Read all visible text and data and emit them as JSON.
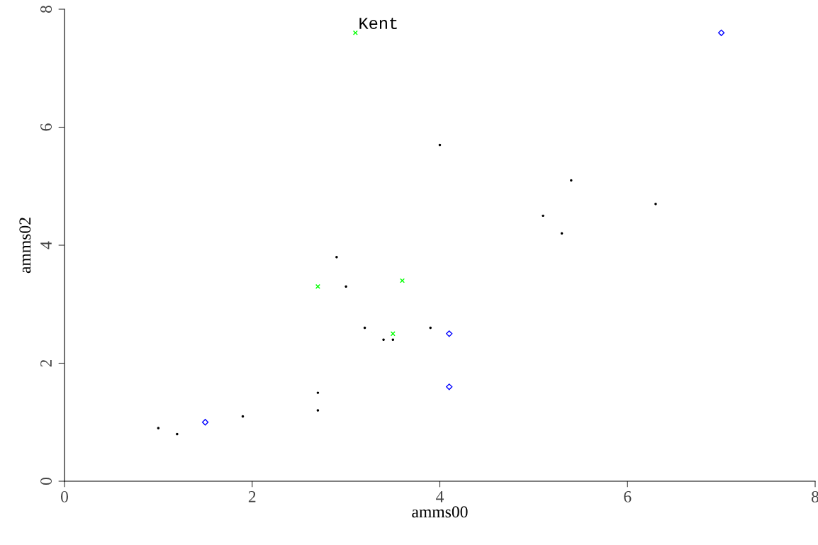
{
  "chart_data": {
    "type": "scatter",
    "xlabel": "amms00",
    "ylabel": "amms02",
    "xlim": [
      0,
      8
    ],
    "ylim": [
      0,
      8
    ],
    "xticks": [
      0,
      2,
      4,
      6,
      8
    ],
    "yticks": [
      0,
      2,
      4,
      6,
      8
    ],
    "grid": false,
    "legend": false,
    "series": [
      {
        "color": "#000000",
        "marker": "circle",
        "x": [
          1.0,
          1.2,
          1.9,
          2.7,
          2.7,
          2.9,
          3.0,
          3.2,
          3.4,
          3.5,
          3.9,
          4.0,
          5.1,
          5.3,
          5.4,
          6.3
        ],
        "values": [
          0.9,
          0.8,
          1.1,
          1.5,
          1.2,
          3.8,
          3.3,
          2.6,
          2.4,
          2.4,
          2.6,
          5.7,
          4.5,
          4.2,
          5.1,
          4.7
        ]
      },
      {
        "color": "#0000ff",
        "marker": "diamond",
        "x": [
          1.5,
          4.1,
          4.1,
          7.0
        ],
        "values": [
          1.0,
          2.5,
          1.6,
          7.6
        ]
      },
      {
        "color": "#00ff00",
        "marker": "cross",
        "x": [
          2.7,
          3.6,
          3.5,
          3.1
        ],
        "values": [
          3.3,
          3.4,
          2.5,
          7.6
        ]
      }
    ],
    "annotations": [
      {
        "text": "Kent",
        "x": 3.1,
        "y": 7.6
      }
    ]
  }
}
